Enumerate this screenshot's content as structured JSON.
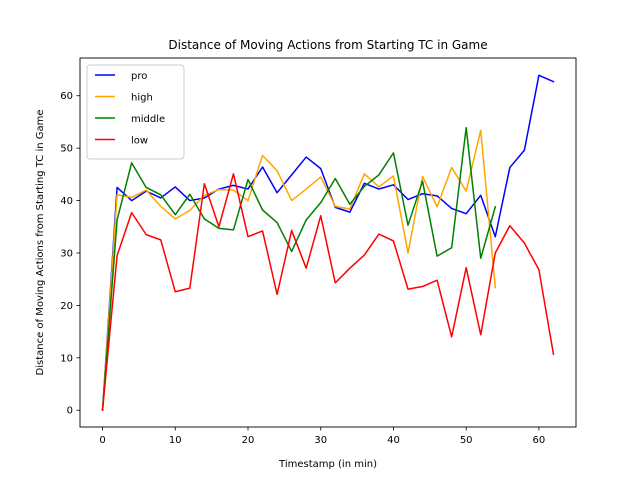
{
  "chart_data": {
    "type": "line",
    "title": "Distance of Moving Actions from Starting TC in Game",
    "xlabel": "Timestamp (in min)",
    "ylabel": "Distance of Moving Actions from Starting TC in Game",
    "xlim": [
      -3.1,
      65.1
    ],
    "ylim": [
      -3.2,
      67.2
    ],
    "xticks": [
      0,
      10,
      20,
      30,
      40,
      50,
      60
    ],
    "yticks": [
      0,
      10,
      20,
      30,
      40,
      50,
      60
    ],
    "grid": false,
    "legend": "top-left",
    "series": [
      {
        "name": "pro",
        "color": "#0000ff",
        "x": [
          0,
          2,
          4,
          6,
          8,
          10,
          12,
          14,
          16,
          18,
          20,
          22,
          24,
          26,
          28,
          30,
          32,
          34,
          36,
          38,
          40,
          42,
          44,
          46,
          48,
          50,
          52,
          54,
          56,
          58,
          60,
          62
        ],
        "y": [
          0,
          42.5,
          40.0,
          41.8,
          40.5,
          42.6,
          40.0,
          40.5,
          42.2,
          42.9,
          42.2,
          46.4,
          41.5,
          44.9,
          48.3,
          46.1,
          38.7,
          37.8,
          43.3,
          42.2,
          43.0,
          40.2,
          41.3,
          40.9,
          38.5,
          37.5,
          41.0,
          33.1,
          46.3,
          49.6,
          63.9,
          62.7
        ]
      },
      {
        "name": "high",
        "color": "#ffa500",
        "x": [
          0,
          2,
          4,
          6,
          8,
          10,
          12,
          14,
          16,
          18,
          20,
          22,
          24,
          26,
          28,
          30,
          32,
          34,
          36,
          38,
          40,
          42,
          44,
          46,
          48,
          50,
          52,
          54
        ],
        "y": [
          0,
          41.1,
          40.6,
          42.0,
          38.9,
          36.5,
          38.1,
          41.0,
          42.1,
          42.0,
          40.0,
          48.6,
          45.7,
          40.0,
          42.2,
          44.5,
          38.9,
          38.4,
          45.1,
          42.6,
          44.7,
          30.0,
          44.6,
          38.8,
          46.3,
          41.8,
          53.4,
          23.4
        ]
      },
      {
        "name": "middle",
        "color": "#008000",
        "x": [
          0,
          2,
          4,
          6,
          8,
          10,
          12,
          14,
          16,
          18,
          20,
          22,
          24,
          26,
          28,
          30,
          32,
          34,
          36,
          38,
          40,
          42,
          44,
          46,
          48,
          50,
          52,
          54
        ],
        "y": [
          0,
          36.3,
          47.2,
          42.5,
          41.1,
          37.3,
          41.2,
          36.5,
          34.7,
          34.4,
          44.0,
          38.2,
          35.8,
          30.3,
          36.3,
          39.6,
          44.2,
          39.3,
          42.7,
          44.9,
          49.1,
          35.3,
          43.7,
          29.4,
          31.0,
          53.9,
          29.0,
          38.8
        ]
      },
      {
        "name": "low",
        "color": "#ff0000",
        "x": [
          0,
          2,
          4,
          6,
          8,
          10,
          12,
          14,
          16,
          18,
          20,
          22,
          24,
          26,
          28,
          30,
          32,
          34,
          36,
          38,
          40,
          42,
          44,
          46,
          48,
          50,
          52,
          54,
          56,
          58,
          60,
          62
        ],
        "y": [
          0,
          29.5,
          37.7,
          33.5,
          32.5,
          22.6,
          23.3,
          43.2,
          35.0,
          45.1,
          33.1,
          34.2,
          22.1,
          34.3,
          27.1,
          37.1,
          24.3,
          27.1,
          29.6,
          33.6,
          32.3,
          23.1,
          23.6,
          24.8,
          14.0,
          27.2,
          14.4,
          30.0,
          35.2,
          31.9,
          26.8,
          10.7
        ]
      }
    ]
  }
}
